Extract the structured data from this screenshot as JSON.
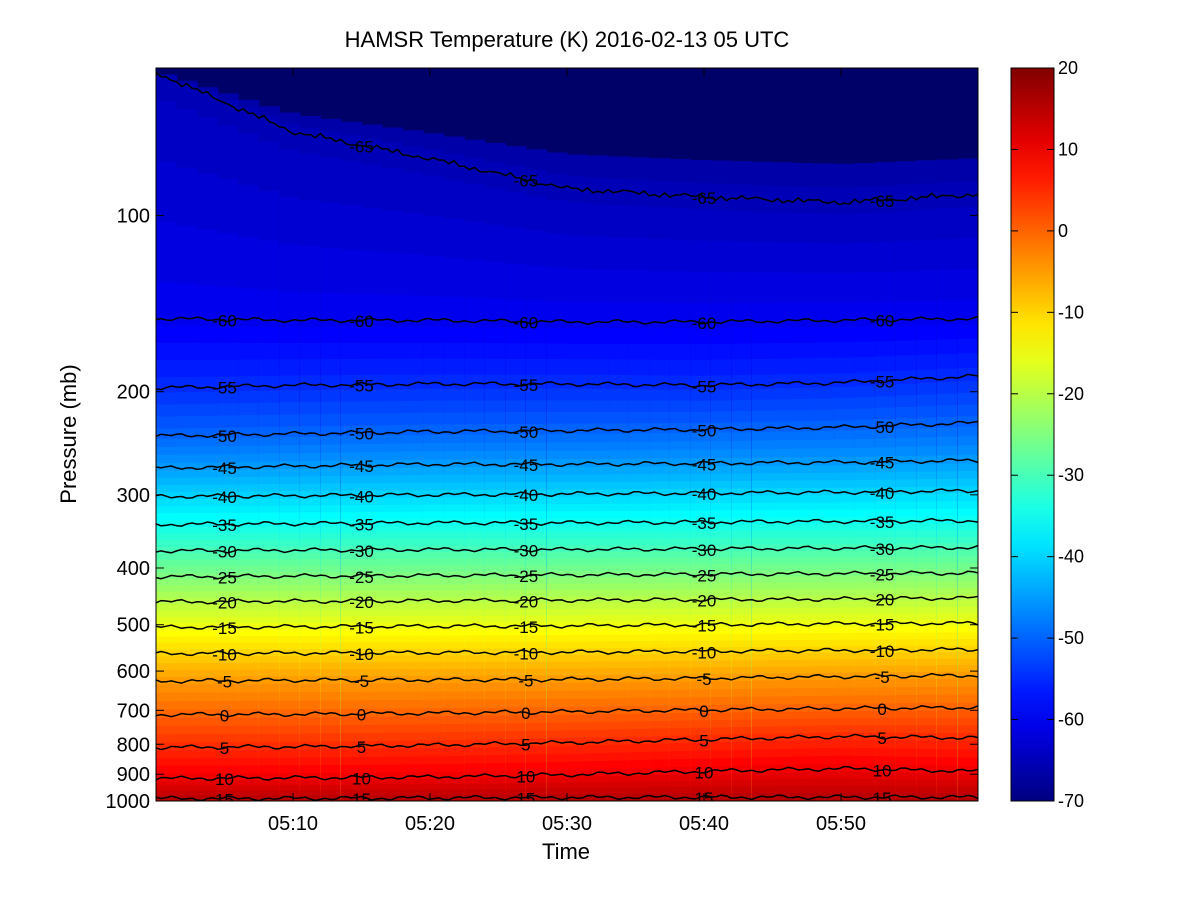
{
  "chart_data": {
    "type": "heatmap",
    "title": "HAMSR  Temperature (K) 2016-02-13 05 UTC",
    "xlabel": "Time",
    "ylabel": "Pressure (mb)",
    "xlim": [
      "05:00",
      "06:00"
    ],
    "ylim": [
      1000,
      50
    ],
    "y_scale": "log",
    "x_ticks": [
      "05:10",
      "05:20",
      "05:30",
      "05:40",
      "05:50"
    ],
    "x_tick_values_min": [
      10,
      20,
      30,
      40,
      50
    ],
    "y_ticks": [
      "100",
      "200",
      "300",
      "400",
      "500",
      "600",
      "700",
      "800",
      "900",
      "1000"
    ],
    "y_tick_values": [
      100,
      200,
      300,
      400,
      500,
      600,
      700,
      800,
      900,
      1000
    ],
    "colorbar": {
      "range": [
        -70,
        20
      ],
      "ticks": [
        "20",
        "10",
        "0",
        "-10",
        "-20",
        "-30",
        "-40",
        "-50",
        "-60",
        "-70"
      ],
      "tick_values": [
        20,
        10,
        0,
        -10,
        -20,
        -30,
        -40,
        -50,
        -60,
        -70
      ],
      "colormap": "jet"
    },
    "contour_levels": [
      -65,
      -60,
      -55,
      -50,
      -45,
      -40,
      -35,
      -30,
      -25,
      -20,
      -15,
      -10,
      -5,
      0,
      5,
      10,
      15
    ],
    "contours": [
      {
        "level": -65,
        "label": "-65",
        "p": [
          57,
          72,
          80,
          90,
          93,
          95,
          92
        ]
      },
      {
        "level": -60,
        "label": "-60",
        "p": [
          150,
          151,
          151,
          152,
          152,
          151,
          150
        ]
      },
      {
        "level": -55,
        "label": "-55",
        "p": [
          197,
          195,
          194,
          194,
          195,
          193,
          188
        ]
      },
      {
        "level": -50,
        "label": "-50",
        "p": [
          238,
          236,
          234,
          233,
          232,
          230,
          226
        ]
      },
      {
        "level": -45,
        "label": "-45",
        "p": [
          270,
          268,
          266,
          266,
          265,
          264,
          262
        ]
      },
      {
        "level": -40,
        "label": "-40",
        "p": [
          302,
          301,
          300,
          299,
          298,
          297,
          295
        ]
      },
      {
        "level": -35,
        "label": "-35",
        "p": [
          337,
          336,
          335,
          335,
          334,
          333,
          332
        ]
      },
      {
        "level": -30,
        "label": "-30",
        "p": [
          374,
          373,
          372,
          372,
          371,
          370,
          369
        ]
      },
      {
        "level": -25,
        "label": "-25",
        "p": [
          414,
          413,
          412,
          411,
          410,
          409,
          408
        ]
      },
      {
        "level": -20,
        "label": "-20",
        "p": [
          457,
          456,
          455,
          454,
          453,
          452,
          450
        ]
      },
      {
        "level": -15,
        "label": "-15",
        "p": [
          505,
          504,
          503,
          502,
          500,
          498,
          497
        ]
      },
      {
        "level": -10,
        "label": "-10",
        "p": [
          560,
          559,
          558,
          557,
          555,
          553,
          551
        ]
      },
      {
        "level": -5,
        "label": "-5",
        "p": [
          624,
          622,
          621,
          620,
          617,
          613,
          610
        ]
      },
      {
        "level": 0,
        "label": "0",
        "p": [
          712,
          711,
          708,
          704,
          699,
          695,
          692
        ]
      },
      {
        "level": 5,
        "label": "5",
        "p": [
          810,
          808,
          803,
          795,
          785,
          776,
          780
        ]
      },
      {
        "level": 10,
        "label": "10",
        "p": [
          915,
          913,
          910,
          902,
          890,
          880,
          890
        ]
      },
      {
        "level": 15,
        "label": "15",
        "p": [
          990,
          990,
          988,
          986,
          985,
          985,
          985
        ]
      }
    ],
    "contour_time_min": [
      0,
      10,
      20,
      30,
      40,
      50,
      60
    ],
    "label_positions_min": [
      {
        "level": -65,
        "t": [
          15,
          27,
          40,
          53
        ]
      },
      {
        "level": -60,
        "t": [
          5,
          15,
          27,
          40,
          53
        ]
      },
      {
        "level": -55,
        "t": [
          5,
          15,
          27,
          40,
          53
        ]
      },
      {
        "level": -50,
        "t": [
          5,
          15,
          27,
          40,
          53
        ]
      },
      {
        "level": -45,
        "t": [
          5,
          15,
          27,
          40,
          53
        ]
      },
      {
        "level": -40,
        "t": [
          5,
          15,
          27,
          40,
          53
        ]
      },
      {
        "level": -35,
        "t": [
          5,
          15,
          27,
          40,
          53
        ]
      },
      {
        "level": -30,
        "t": [
          5,
          15,
          27,
          40,
          53
        ]
      },
      {
        "level": -25,
        "t": [
          5,
          15,
          27,
          40,
          53
        ]
      },
      {
        "level": -20,
        "t": [
          5,
          15,
          27,
          40,
          53
        ]
      },
      {
        "level": -15,
        "t": [
          5,
          15,
          27,
          40,
          53
        ]
      },
      {
        "level": -10,
        "t": [
          5,
          15,
          27,
          40,
          53
        ]
      },
      {
        "level": -5,
        "t": [
          5,
          15,
          27,
          40,
          53
        ]
      },
      {
        "level": 0,
        "t": [
          5,
          15,
          27,
          40,
          53
        ]
      },
      {
        "level": 5,
        "t": [
          5,
          15,
          27,
          40,
          53
        ]
      },
      {
        "level": 10,
        "t": [
          5,
          15,
          27,
          40,
          53
        ]
      },
      {
        "level": 15,
        "t": [
          5,
          15,
          27,
          40,
          53
        ]
      }
    ]
  }
}
